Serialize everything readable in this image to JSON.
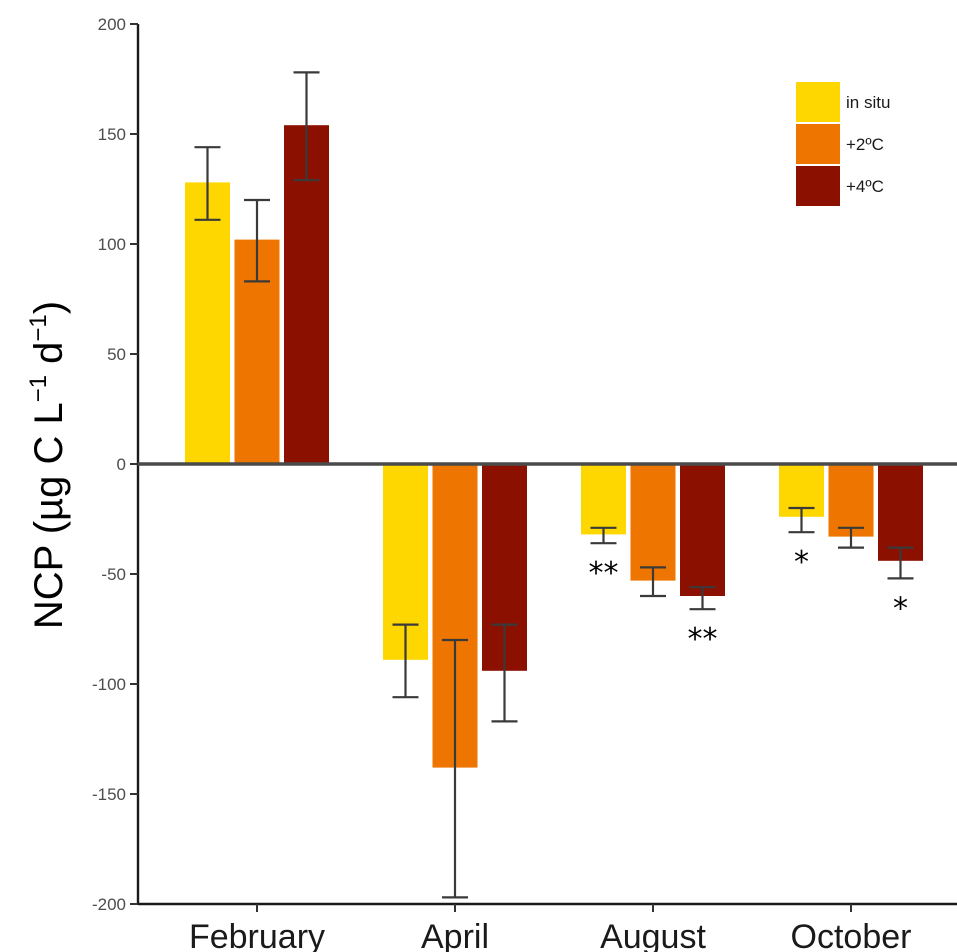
{
  "chart_data": {
    "type": "bar",
    "ylabel_parts": [
      "NCP (µg C L",
      "−1",
      " d",
      "−1",
      ")"
    ],
    "categories": [
      "February",
      "April",
      "August",
      "October"
    ],
    "series": [
      {
        "name": "in situ",
        "color": "#FFD700",
        "values": [
          128,
          -89,
          -32,
          -24
        ],
        "err_low": [
          111,
          -106,
          -36,
          -31
        ],
        "err_high": [
          144,
          -73,
          -29,
          -20
        ]
      },
      {
        "name": "+2ºC",
        "color": "#EE7600",
        "values": [
          102,
          -138,
          -53,
          -33
        ],
        "err_low": [
          83,
          -197,
          -60,
          -38
        ],
        "err_high": [
          120,
          -80,
          -47,
          -29
        ]
      },
      {
        "name": "+4ºC",
        "color": "#8B1000",
        "values": [
          154,
          -94,
          -60,
          -44
        ],
        "err_low": [
          129,
          -117,
          -66,
          -52
        ],
        "err_high": [
          178,
          -73,
          -56,
          -38
        ]
      }
    ],
    "significance": [
      {
        "category": "August",
        "series": "in situ",
        "label": "**"
      },
      {
        "category": "August",
        "series": "+4ºC",
        "label": "**"
      },
      {
        "category": "October",
        "series": "in situ",
        "label": "*"
      },
      {
        "category": "October",
        "series": "+4ºC",
        "label": "*"
      }
    ],
    "yticks": [
      200,
      150,
      100,
      50,
      0,
      -50,
      -100,
      -150,
      -200
    ],
    "ylim": [
      -200,
      200
    ],
    "legend_position": "top-right",
    "grid": false
  }
}
